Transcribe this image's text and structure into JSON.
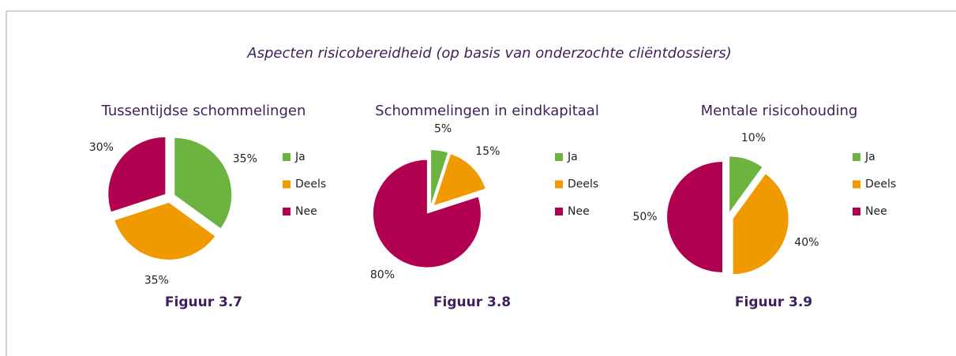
{
  "title": "Aspecten risicobereidheid (op basis van onderzochte cliëntdossiers)",
  "chart_data": [
    {
      "type": "pie",
      "title": "Tussentijdse schommelingen",
      "caption": "Figuur 3.7",
      "categories": [
        "Ja",
        "Deels",
        "Nee"
      ],
      "values": [
        35,
        35,
        30
      ],
      "value_labels": [
        "35%",
        "35%",
        "30%"
      ],
      "colors": [
        "#6db33f",
        "#f09a00",
        "#b0004f"
      ]
    },
    {
      "type": "pie",
      "title": "Schommelingen in eindkapitaal",
      "caption": "Figuur 3.8",
      "categories": [
        "Ja",
        "Deels",
        "Nee"
      ],
      "values": [
        5,
        15,
        80
      ],
      "value_labels": [
        "5%",
        "15%",
        "80%"
      ],
      "colors": [
        "#6db33f",
        "#f09a00",
        "#b0004f"
      ]
    },
    {
      "type": "pie",
      "title": "Mentale risicohouding",
      "caption": "Figuur 3.9",
      "categories": [
        "Ja",
        "Deels",
        "Nee"
      ],
      "values": [
        10,
        40,
        50
      ],
      "value_labels": [
        "10%",
        "40%",
        "50%"
      ],
      "colors": [
        "#6db33f",
        "#f09a00",
        "#b0004f"
      ]
    }
  ]
}
